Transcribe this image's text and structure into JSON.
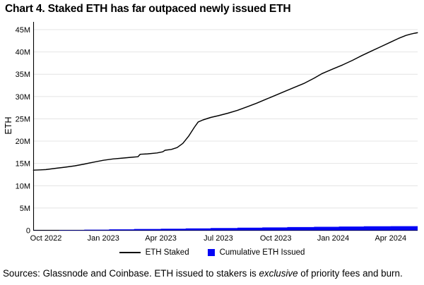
{
  "sources": {
    "prefix": "Sources: Glassnode and Coinbase. ETH issued to stakers is ",
    "emphasis": "exclusive",
    "suffix": " of priority fees and burn."
  },
  "chart_data": {
    "type": "line",
    "title": "Chart 4. Staked ETH has far outpaced newly issued ETH",
    "ylabel": "ETH",
    "x_unit": "months from Oct 2022",
    "x_range": [
      -0.65,
      19.4
    ],
    "y_range": [
      0,
      45
    ],
    "y_unit": "millions of ETH",
    "grid": "horizontal",
    "legend_position": "bottom-center",
    "x_ticks": [
      {
        "t": 0,
        "label": "Oct 2022"
      },
      {
        "t": 3,
        "label": "Jan 2023"
      },
      {
        "t": 6,
        "label": "Apr 2023"
      },
      {
        "t": 9,
        "label": "Jul 2023"
      },
      {
        "t": 12,
        "label": "Oct 2023"
      },
      {
        "t": 15,
        "label": "Jan 2024"
      },
      {
        "t": 18,
        "label": "Apr 2024"
      }
    ],
    "y_ticks": [
      {
        "v": 0,
        "label": "0"
      },
      {
        "v": 5,
        "label": "5M"
      },
      {
        "v": 10,
        "label": "10M"
      },
      {
        "v": 15,
        "label": "15M"
      },
      {
        "v": 20,
        "label": "20M"
      },
      {
        "v": 25,
        "label": "25M"
      },
      {
        "v": 30,
        "label": "30M"
      },
      {
        "v": 35,
        "label": "35M"
      },
      {
        "v": 40,
        "label": "40M"
      },
      {
        "v": 45,
        "label": "45M"
      }
    ],
    "series": [
      {
        "name": "ETH Staked",
        "type": "line",
        "color": "#000000",
        "points": [
          [
            -0.65,
            13.5
          ],
          [
            -0.3,
            13.55
          ],
          [
            0,
            13.62
          ],
          [
            0.5,
            13.9
          ],
          [
            1,
            14.15
          ],
          [
            1.5,
            14.45
          ],
          [
            2,
            14.85
          ],
          [
            2.5,
            15.3
          ],
          [
            3,
            15.7
          ],
          [
            3.5,
            16.0
          ],
          [
            4,
            16.2
          ],
          [
            4.5,
            16.38
          ],
          [
            4.8,
            16.5
          ],
          [
            4.92,
            17.05
          ],
          [
            5.3,
            17.15
          ],
          [
            5.8,
            17.35
          ],
          [
            6.1,
            17.6
          ],
          [
            6.22,
            17.95
          ],
          [
            6.55,
            18.15
          ],
          [
            6.85,
            18.55
          ],
          [
            7.15,
            19.5
          ],
          [
            7.45,
            21.1
          ],
          [
            7.75,
            23.1
          ],
          [
            7.95,
            24.3
          ],
          [
            8.2,
            24.75
          ],
          [
            8.6,
            25.3
          ],
          [
            9,
            25.7
          ],
          [
            9.5,
            26.25
          ],
          [
            10,
            26.9
          ],
          [
            10.5,
            27.7
          ],
          [
            11,
            28.5
          ],
          [
            11.5,
            29.4
          ],
          [
            12,
            30.3
          ],
          [
            12.5,
            31.2
          ],
          [
            13,
            32.1
          ],
          [
            13.5,
            33.0
          ],
          [
            14,
            34.1
          ],
          [
            14.4,
            35.1
          ],
          [
            15,
            36.2
          ],
          [
            15.5,
            37.1
          ],
          [
            16,
            38.1
          ],
          [
            16.5,
            39.2
          ],
          [
            17,
            40.2
          ],
          [
            17.5,
            41.2
          ],
          [
            18,
            42.2
          ],
          [
            18.4,
            43.0
          ],
          [
            18.8,
            43.7
          ],
          [
            19.05,
            44.0
          ],
          [
            19.25,
            44.2
          ],
          [
            19.4,
            44.3
          ]
        ]
      },
      {
        "name": "Cumulative ETH Issued",
        "type": "step_area",
        "color": "#0505f5",
        "points": [
          [
            -0.65,
            0.02
          ],
          [
            0.7,
            0.08
          ],
          [
            2,
            0.15
          ],
          [
            3.3,
            0.22
          ],
          [
            4.6,
            0.3
          ],
          [
            6,
            0.37
          ],
          [
            7.3,
            0.44
          ],
          [
            8.6,
            0.51
          ],
          [
            10,
            0.58
          ],
          [
            11.3,
            0.65
          ],
          [
            12.6,
            0.72
          ],
          [
            14,
            0.79
          ],
          [
            15.3,
            0.85
          ],
          [
            16.6,
            0.9
          ],
          [
            18,
            0.94
          ],
          [
            19.4,
            0.97
          ]
        ]
      }
    ]
  }
}
